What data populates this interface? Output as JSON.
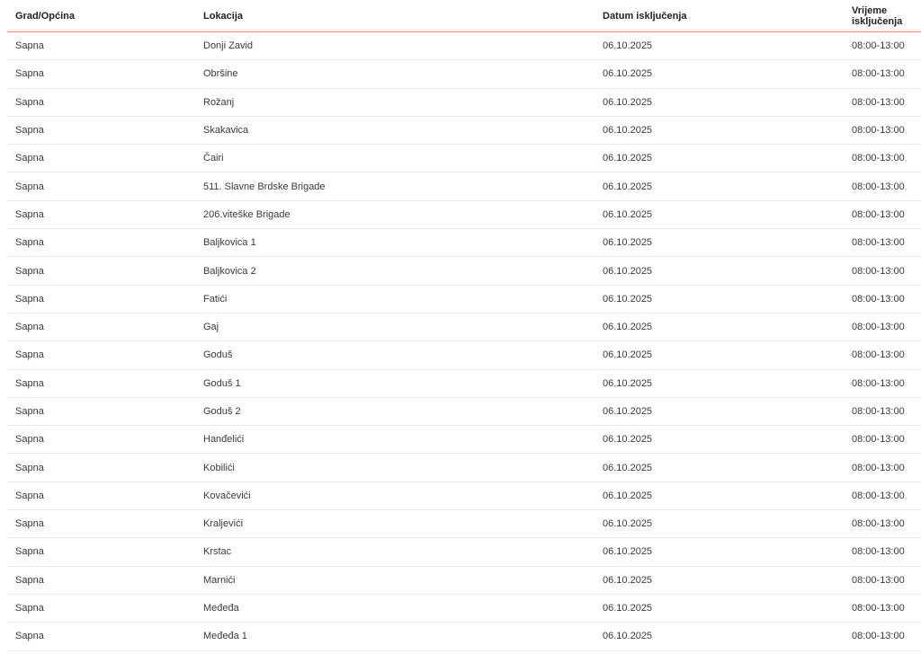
{
  "columns": [
    "Grad/Općina",
    "Lokacija",
    "Datum isključenja",
    "Vrijeme isključenja"
  ],
  "rows": [
    [
      "Sapna",
      "Donji Zavid",
      "06.10.2025",
      "08:00-13:00"
    ],
    [
      "Sapna",
      "Obršine",
      "06.10.2025",
      "08:00-13:00"
    ],
    [
      "Sapna",
      "Rožanj",
      "06.10.2025",
      "08:00-13:00"
    ],
    [
      "Sapna",
      "Skakavica",
      "06.10.2025",
      "08:00-13:00"
    ],
    [
      "Sapna",
      "Čairi",
      "06.10.2025",
      "08:00-13:00"
    ],
    [
      "Sapna",
      "511. Slavne Brdske Brigade",
      "06.10.2025",
      "08:00-13:00"
    ],
    [
      "Sapna",
      "206.viteške Brigade",
      "06.10.2025",
      "08:00-13:00"
    ],
    [
      "Sapna",
      "Baljkovica 1",
      "06.10.2025",
      "08:00-13:00"
    ],
    [
      "Sapna",
      "Baljkovica 2",
      "06.10.2025",
      "08:00-13:00"
    ],
    [
      "Sapna",
      "Fatići",
      "06.10.2025",
      "08:00-13:00"
    ],
    [
      "Sapna",
      "Gaj",
      "06.10.2025",
      "08:00-13:00"
    ],
    [
      "Sapna",
      "Goduš",
      "06.10.2025",
      "08:00-13:00"
    ],
    [
      "Sapna",
      "Goduš 1",
      "06.10.2025",
      "08:00-13:00"
    ],
    [
      "Sapna",
      "Goduš 2",
      "06.10.2025",
      "08:00-13:00"
    ],
    [
      "Sapna",
      "Hanđelići",
      "06.10.2025",
      "08:00-13:00"
    ],
    [
      "Sapna",
      "Kobilići",
      "06.10.2025",
      "08:00-13:00"
    ],
    [
      "Sapna",
      "Kovačevići",
      "06.10.2025",
      "08:00-13:00"
    ],
    [
      "Sapna",
      "Kraljevići",
      "06.10.2025",
      "08:00-13:00"
    ],
    [
      "Sapna",
      "Krstac",
      "06.10.2025",
      "08:00-13:00"
    ],
    [
      "Sapna",
      "Marnići",
      "06.10.2025",
      "08:00-13:00"
    ],
    [
      "Sapna",
      "Međeđa",
      "06.10.2025",
      "08:00-13:00"
    ],
    [
      "Sapna",
      "Međeđa 1",
      "06.10.2025",
      "08:00-13:00"
    ]
  ],
  "colors": {
    "header_rule": "#f08b70",
    "row_rule": "#e6e8ea"
  }
}
